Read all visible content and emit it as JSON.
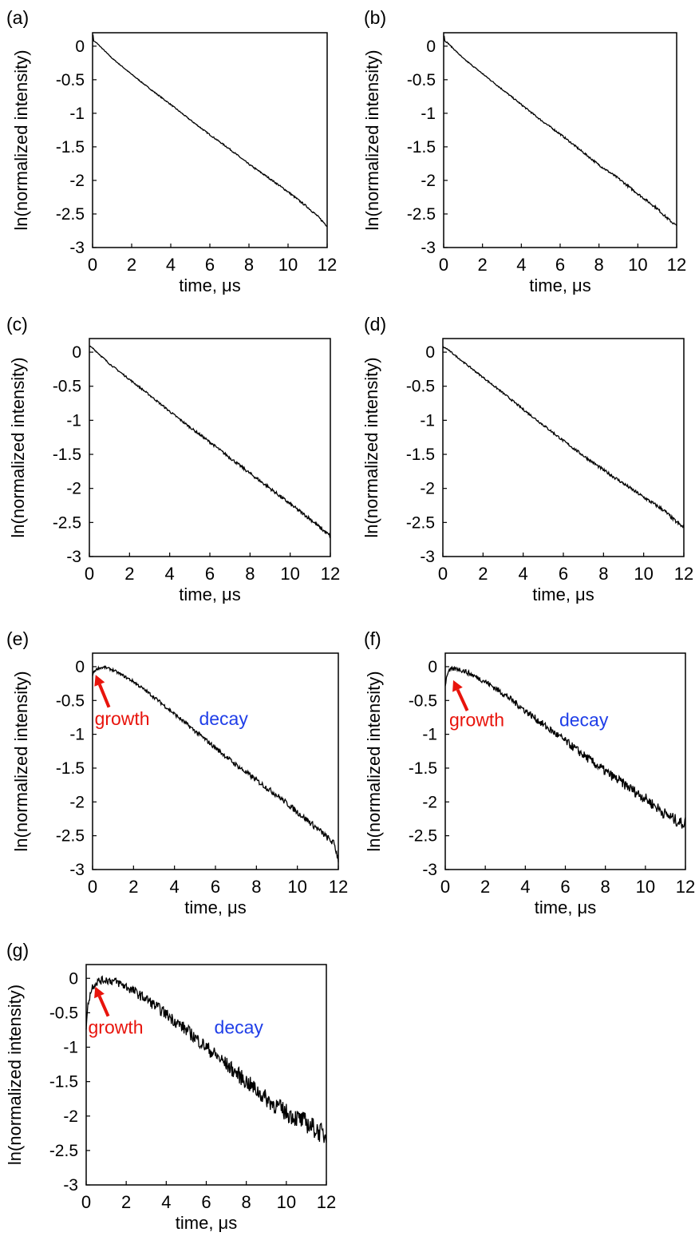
{
  "chart_data": [
    {
      "type": "line",
      "panel_label": "(a)",
      "xlabel": "time, μs",
      "ylabel": "ln(normalized intensity)",
      "xlim": [
        0,
        12
      ],
      "ylim": [
        -3,
        0.2
      ],
      "x_ticks": [
        "0",
        "2",
        "4",
        "6",
        "8",
        "10",
        "12"
      ],
      "y_ticks": [
        "0",
        "-0.5",
        "-1",
        "-1.5",
        "-2",
        "-2.5",
        "-3"
      ],
      "series": [
        {
          "x": [
            0,
            0.02,
            0.05,
            0.2,
            1,
            2,
            3,
            4,
            5,
            6,
            7,
            8,
            9,
            10,
            11,
            11.5,
            12
          ],
          "y": [
            0.15,
            0.18,
            0.08,
            0.05,
            -0.18,
            -0.42,
            -0.65,
            -0.87,
            -1.1,
            -1.32,
            -1.53,
            -1.76,
            -1.96,
            -2.17,
            -2.4,
            -2.53,
            -2.68
          ],
          "noise": 0.015
        }
      ],
      "annotations": []
    },
    {
      "type": "line",
      "panel_label": "(b)",
      "xlabel": "time, μs",
      "ylabel": "ln(normalized intensity)",
      "xlim": [
        0,
        12
      ],
      "ylim": [
        -3,
        0.2
      ],
      "x_ticks": [
        "0",
        "2",
        "4",
        "6",
        "8",
        "10",
        "12"
      ],
      "y_ticks": [
        "0",
        "-0.5",
        "-1",
        "-1.5",
        "-2",
        "-2.5",
        "-3"
      ],
      "series": [
        {
          "x": [
            0,
            0.02,
            0.05,
            0.2,
            1,
            2,
            3,
            4,
            5,
            6,
            7,
            8,
            9,
            10,
            11,
            11.5,
            12
          ],
          "y": [
            0.15,
            0.18,
            0.08,
            0.05,
            -0.18,
            -0.41,
            -0.64,
            -0.87,
            -1.1,
            -1.31,
            -1.54,
            -1.77,
            -1.97,
            -2.2,
            -2.42,
            -2.56,
            -2.68
          ],
          "noise": 0.02
        }
      ],
      "annotations": []
    },
    {
      "type": "line",
      "panel_label": "(c)",
      "xlabel": "time, μs",
      "ylabel": "ln(normalized intensity)",
      "xlim": [
        0,
        12
      ],
      "ylim": [
        -3,
        0.2
      ],
      "x_ticks": [
        "0",
        "2",
        "4",
        "6",
        "8",
        "10",
        "12"
      ],
      "y_ticks": [
        "0",
        "-0.5",
        "-1",
        "-1.5",
        "-2",
        "-2.5",
        "-3"
      ],
      "series": [
        {
          "x": [
            0,
            0.05,
            0.2,
            1,
            2,
            3,
            4,
            5,
            6,
            7,
            8,
            9,
            10,
            11,
            11.5,
            12
          ],
          "y": [
            0.1,
            0.08,
            0.05,
            -0.17,
            -0.4,
            -0.63,
            -0.87,
            -1.1,
            -1.32,
            -1.55,
            -1.78,
            -2.0,
            -2.23,
            -2.45,
            -2.58,
            -2.7
          ],
          "noise": 0.028
        }
      ],
      "annotations": []
    },
    {
      "type": "line",
      "panel_label": "(d)",
      "xlabel": "time, μs",
      "ylabel": "ln(normalized intensity)",
      "xlim": [
        0,
        12
      ],
      "ylim": [
        -3,
        0.2
      ],
      "x_ticks": [
        "0",
        "2",
        "4",
        "6",
        "8",
        "10",
        "12"
      ],
      "y_ticks": [
        "0",
        "-0.5",
        "-1",
        "-1.5",
        "-2",
        "-2.5",
        "-3"
      ],
      "series": [
        {
          "x": [
            0,
            0.05,
            0.2,
            1,
            2,
            3,
            4,
            5,
            6,
            7,
            8,
            9,
            10,
            11,
            11.5,
            12
          ],
          "y": [
            0.08,
            0.07,
            0.05,
            -0.14,
            -0.37,
            -0.6,
            -0.84,
            -1.07,
            -1.3,
            -1.52,
            -1.73,
            -1.93,
            -2.13,
            -2.32,
            -2.46,
            -2.58
          ],
          "noise": 0.028
        }
      ],
      "annotations": []
    },
    {
      "type": "line",
      "panel_label": "(e)",
      "xlabel": "time, μs",
      "ylabel": "ln(normalized intensity)",
      "xlim": [
        0,
        12
      ],
      "ylim": [
        -3,
        0.2
      ],
      "x_ticks": [
        "0",
        "2",
        "4",
        "6",
        "8",
        "10",
        "12"
      ],
      "y_ticks": [
        "0",
        "-0.5",
        "-1",
        "-1.5",
        "-2",
        "-2.5",
        "-3"
      ],
      "series": [
        {
          "x": [
            0,
            0.1,
            0.3,
            0.6,
            1,
            2,
            3,
            4,
            5,
            6,
            7,
            8,
            9,
            10,
            11,
            11.8,
            12
          ],
          "y": [
            -0.12,
            -0.06,
            -0.02,
            -0.01,
            -0.05,
            -0.22,
            -0.45,
            -0.7,
            -0.95,
            -1.2,
            -1.45,
            -1.68,
            -1.9,
            -2.15,
            -2.4,
            -2.62,
            -2.85
          ],
          "noise": 0.05
        }
      ],
      "annotations": [
        {
          "text": "growth",
          "color": "#e8140c",
          "arrow_from": [
            0.8,
            -0.6
          ],
          "arrow_to": [
            0.15,
            -0.12
          ],
          "x": 0.1,
          "y": -0.86
        },
        {
          "text": "decay",
          "color": "#1f3ee8",
          "x": 5.2,
          "y": -0.86
        }
      ]
    },
    {
      "type": "line",
      "panel_label": "(f)",
      "xlabel": "time, μs",
      "ylabel": "ln(normalized intensity)",
      "xlim": [
        0,
        12
      ],
      "ylim": [
        -3,
        0.2
      ],
      "x_ticks": [
        "0",
        "2",
        "4",
        "6",
        "8",
        "10",
        "12"
      ],
      "y_ticks": [
        "0",
        "-0.5",
        "-1",
        "-1.5",
        "-2",
        "-2.5",
        "-3"
      ],
      "series": [
        {
          "x": [
            0,
            0.1,
            0.3,
            0.6,
            1,
            2,
            3,
            4,
            5,
            6,
            7,
            8,
            9,
            10,
            11,
            11.8,
            12
          ],
          "y": [
            -0.28,
            -0.1,
            -0.04,
            -0.03,
            -0.07,
            -0.22,
            -0.42,
            -0.65,
            -0.88,
            -1.1,
            -1.33,
            -1.55,
            -1.75,
            -1.95,
            -2.18,
            -2.32,
            -2.3
          ],
          "noise": 0.09
        }
      ],
      "annotations": [
        {
          "text": "growth",
          "color": "#e8140c",
          "arrow_from": [
            1.1,
            -0.65
          ],
          "arrow_to": [
            0.4,
            -0.2
          ],
          "x": 0.2,
          "y": -0.88
        },
        {
          "text": "decay",
          "color": "#1f3ee8",
          "x": 5.7,
          "y": -0.88
        }
      ]
    },
    {
      "type": "line",
      "panel_label": "(g)",
      "xlabel": "time, μs",
      "ylabel": "ln(normalized intensity)",
      "xlim": [
        0,
        12
      ],
      "ylim": [
        -3,
        0.2
      ],
      "x_ticks": [
        "0",
        "2",
        "4",
        "6",
        "8",
        "10",
        "12"
      ],
      "y_ticks": [
        "0",
        "-0.5",
        "-1",
        "-1.5",
        "-2",
        "-2.5",
        "-3"
      ],
      "series": [
        {
          "x": [
            0,
            0.1,
            0.3,
            0.6,
            1,
            1.5,
            2,
            3,
            4,
            5,
            6,
            7,
            8,
            9,
            10,
            11,
            12
          ],
          "y": [
            -0.7,
            -0.35,
            -0.12,
            -0.04,
            -0.02,
            -0.05,
            -0.12,
            -0.3,
            -0.52,
            -0.75,
            -1.0,
            -1.25,
            -1.5,
            -1.75,
            -1.95,
            -2.1,
            -2.3
          ],
          "noise": 0.15
        }
      ],
      "annotations": [
        {
          "text": "growth",
          "color": "#e8140c",
          "arrow_from": [
            1.1,
            -0.55
          ],
          "arrow_to": [
            0.45,
            -0.12
          ],
          "x": 0.1,
          "y": -0.8
        },
        {
          "text": "decay",
          "color": "#1f3ee8",
          "x": 6.4,
          "y": -0.8
        }
      ]
    }
  ]
}
